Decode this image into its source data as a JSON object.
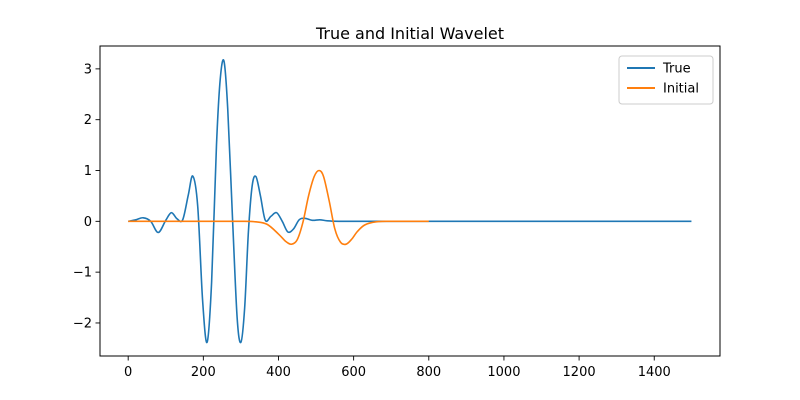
{
  "chart_data": {
    "type": "line",
    "title": "True and Initial Wavelet",
    "xlabel": "",
    "ylabel": "",
    "xlim": [
      -75,
      1575
    ],
    "ylim": [
      -2.65,
      3.45
    ],
    "xticks": [
      0,
      200,
      400,
      600,
      800,
      1000,
      1200,
      1400
    ],
    "xtick_labels": [
      "0",
      "200",
      "400",
      "600",
      "800",
      "1000",
      "1200",
      "1400"
    ],
    "yticks": [
      -2,
      -1,
      0,
      1,
      2,
      3
    ],
    "ytick_labels": [
      "−2",
      "−1",
      "0",
      "1",
      "2",
      "3"
    ],
    "grid": false,
    "legend_position": "top-right",
    "series": [
      {
        "name": "True",
        "color": "#1f77b4",
        "x": [
          0,
          20,
          40,
          60,
          80,
          100,
          115,
          130,
          145,
          160,
          172,
          185,
          198,
          210,
          222,
          235,
          245,
          255,
          265,
          278,
          290,
          300,
          310,
          320,
          330,
          340,
          352,
          365,
          380,
          395,
          410,
          425,
          440,
          455,
          470,
          490,
          510,
          530,
          560,
          600,
          700,
          1000,
          1499
        ],
        "y": [
          0,
          0.03,
          0.07,
          0.0,
          -0.22,
          0.02,
          0.17,
          0.05,
          0.03,
          0.52,
          0.89,
          0.3,
          -1.55,
          -2.38,
          -1.2,
          1.5,
          2.8,
          3.15,
          2.2,
          0.0,
          -1.9,
          -2.38,
          -1.7,
          -0.2,
          0.7,
          0.88,
          0.5,
          0.02,
          0.1,
          0.17,
          0.0,
          -0.21,
          -0.15,
          0.03,
          0.06,
          0.02,
          0.03,
          0.01,
          0.0,
          0.0,
          0.0,
          0.0,
          0.0
        ]
      },
      {
        "name": "Initial",
        "color": "#ff7f0e",
        "x": [
          0,
          100,
          200,
          300,
          340,
          370,
          400,
          420,
          435,
          450,
          465,
          480,
          495,
          508,
          520,
          535,
          550,
          565,
          580,
          595,
          610,
          630,
          660,
          700,
          800
        ],
        "y": [
          0,
          0,
          0,
          0,
          -0.01,
          -0.06,
          -0.25,
          -0.4,
          -0.45,
          -0.36,
          -0.02,
          0.5,
          0.88,
          1.0,
          0.88,
          0.4,
          -0.15,
          -0.41,
          -0.45,
          -0.35,
          -0.2,
          -0.07,
          -0.01,
          0.0,
          0.0
        ]
      }
    ]
  }
}
